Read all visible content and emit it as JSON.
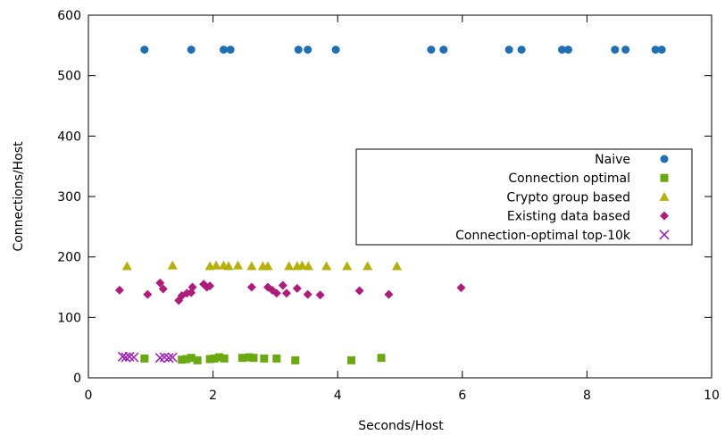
{
  "chart_data": {
    "type": "scatter",
    "title": "",
    "xlabel": "Seconds/Host",
    "ylabel": "Connections/Host",
    "xlim": [
      0,
      10
    ],
    "ylim": [
      0,
      600
    ],
    "xticks": [
      0,
      2,
      4,
      6,
      8,
      10
    ],
    "yticks": [
      0,
      100,
      200,
      300,
      400,
      500,
      600
    ],
    "grid": false,
    "legend_position": "right",
    "series": [
      {
        "name": "Naive",
        "marker": "circle",
        "color": "#1f6fb5",
        "x": [
          0.9,
          1.65,
          2.17,
          2.28,
          3.37,
          3.52,
          3.97,
          5.5,
          5.7,
          6.75,
          6.95,
          7.6,
          7.7,
          8.45,
          8.62,
          9.1,
          9.2
        ],
        "y": [
          543,
          543,
          543,
          543,
          543,
          543,
          543,
          543,
          543,
          543,
          543,
          543,
          543,
          543,
          543,
          543,
          543
        ]
      },
      {
        "name": "Connection optimal",
        "marker": "square",
        "color": "#6aaa10",
        "x": [
          0.9,
          1.5,
          1.57,
          1.65,
          1.75,
          1.95,
          2.02,
          2.1,
          2.18,
          2.47,
          2.58,
          2.65,
          2.82,
          3.02,
          3.32,
          4.22,
          4.7
        ],
        "y": [
          32,
          30,
          31,
          33,
          29,
          31,
          32,
          34,
          32,
          33,
          34,
          33,
          32,
          32,
          29,
          29,
          33
        ],
        "label_color": "#6aaa10"
      },
      {
        "name": "Crypto group based",
        "marker": "triangle",
        "color": "#b5b00a",
        "x": [
          0.62,
          1.35,
          1.95,
          2.05,
          2.17,
          2.25,
          2.4,
          2.62,
          2.8,
          2.88,
          3.22,
          3.35,
          3.43,
          3.53,
          3.82,
          4.15,
          4.48,
          4.95
        ],
        "y": [
          185,
          186,
          185,
          186,
          186,
          185,
          186,
          185,
          185,
          185,
          185,
          185,
          186,
          185,
          185,
          185,
          185,
          185
        ]
      },
      {
        "name": "Existing data based",
        "marker": "diamond",
        "color": "#b01a7a",
        "x": [
          0.5,
          0.95,
          1.15,
          1.2,
          1.45,
          1.5,
          1.58,
          1.65,
          1.67,
          1.85,
          1.9,
          1.95,
          2.62,
          2.88,
          2.95,
          3.02,
          3.12,
          3.18,
          3.35,
          3.52,
          3.72,
          4.35,
          4.82,
          5.98
        ],
        "y": [
          145,
          138,
          157,
          147,
          128,
          136,
          140,
          141,
          150,
          155,
          150,
          152,
          150,
          150,
          145,
          140,
          153,
          140,
          148,
          138,
          137,
          144,
          138,
          149
        ]
      },
      {
        "name": "Connection-optimal top-10k",
        "marker": "x",
        "color": "#9b1fb5",
        "x": [
          0.55,
          0.6,
          0.66,
          0.73,
          1.15,
          1.22,
          1.29,
          1.35
        ],
        "y": [
          35,
          34,
          35,
          34,
          33,
          34,
          33,
          34
        ]
      }
    ]
  }
}
